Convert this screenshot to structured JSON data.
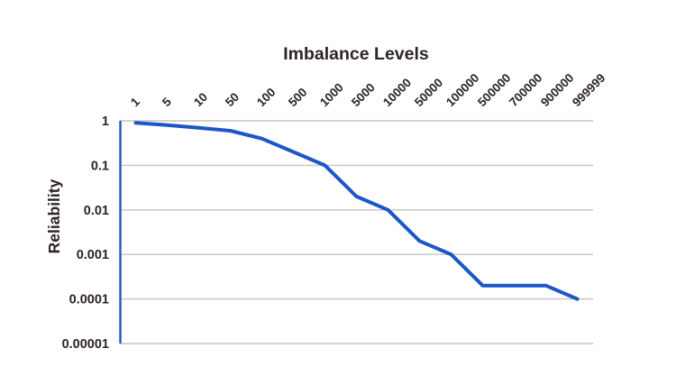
{
  "chart_data": {
    "type": "line",
    "title": "Imbalance Levels",
    "xlabel": "",
    "ylabel": "Reliability",
    "categories": [
      "1",
      "5",
      "10",
      "50",
      "100",
      "500",
      "1000",
      "5000",
      "10000",
      "50000",
      "100000",
      "500000",
      "700000",
      "900000",
      "999999"
    ],
    "series": [
      {
        "name": "Reliability",
        "values": [
          0.9,
          0.8,
          0.7,
          0.6,
          0.4,
          0.2,
          0.1,
          0.02,
          0.01,
          0.002,
          0.001,
          0.0002,
          0.0002,
          0.0002,
          0.0001
        ]
      }
    ],
    "y_scale": "log",
    "ylim": [
      1e-05,
      1
    ],
    "y_ticks": [
      1,
      0.1,
      0.01,
      0.001,
      0.0001,
      1e-05
    ],
    "y_tick_labels": [
      "1",
      "0.1",
      "0.01",
      "0.001",
      "0.0001",
      "0.00001"
    ],
    "x_axis_position": "top",
    "x_tick_rotation_deg": 45,
    "grid": "horizontal-only",
    "legend": "none",
    "colors": {
      "line": "#1d56c8",
      "y_axis_line": "#2456c0",
      "gridline": "#c7c3c3",
      "text": "#2e2424",
      "background": "#ffffff"
    }
  }
}
